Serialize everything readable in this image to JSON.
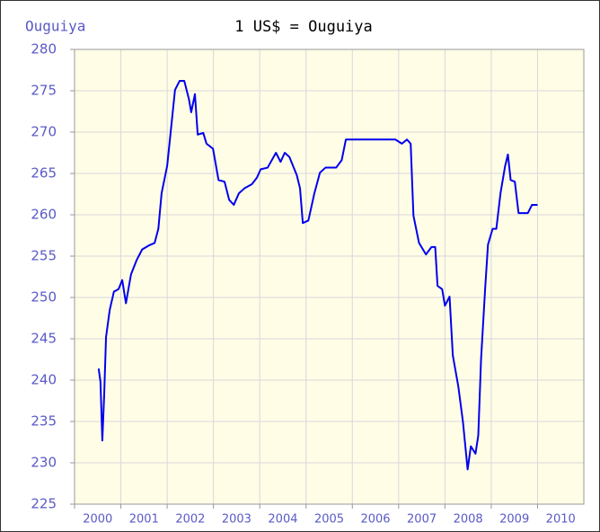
{
  "chart_data": {
    "type": "line",
    "title": "1 US$ = Ouguiya",
    "ylabel": "Ouguiya",
    "x": [
      2000.52,
      2000.56,
      2000.6,
      2000.64,
      2000.68,
      2000.76,
      2000.85,
      2000.95,
      2001.03,
      2001.11,
      2001.22,
      2001.34,
      2001.46,
      2001.61,
      2001.73,
      2001.81,
      2001.88,
      2002.0,
      2002.08,
      2002.17,
      2002.27,
      2002.37,
      2002.47,
      2002.52,
      2002.6,
      2002.66,
      2002.78,
      2002.85,
      2002.99,
      2003.11,
      2003.24,
      2003.34,
      2003.44,
      2003.55,
      2003.67,
      2003.83,
      2003.94,
      2004.02,
      2004.17,
      2004.35,
      2004.45,
      2004.54,
      2004.64,
      2004.8,
      2004.87,
      2004.93,
      2005.05,
      2005.18,
      2005.3,
      2005.42,
      2005.65,
      2005.77,
      2005.86,
      2006.93,
      2007.07,
      2007.18,
      2007.26,
      2007.32,
      2007.44,
      2007.59,
      2007.71,
      2007.79,
      2007.84,
      2007.94,
      2008.0,
      2008.1,
      2008.17,
      2008.29,
      2008.39,
      2008.49,
      2008.56,
      2008.66,
      2008.72,
      2008.78,
      2008.87,
      2008.93,
      2009.03,
      2009.11,
      2009.2,
      2009.3,
      2009.36,
      2009.42,
      2009.51,
      2009.59,
      2009.79,
      2009.88,
      2010.0
    ],
    "series": [
      {
        "name": "Ouguiya",
        "color": "#0000ee",
        "values": [
          241.4,
          239.8,
          232.7,
          238.2,
          245.2,
          248.5,
          250.7,
          251.0,
          252.1,
          249.3,
          252.8,
          254.5,
          255.8,
          256.3,
          256.6,
          258.3,
          262.6,
          265.9,
          270.2,
          275.1,
          276.2,
          276.2,
          274.0,
          272.4,
          274.6,
          269.7,
          269.9,
          268.6,
          268.0,
          264.2,
          264.0,
          261.8,
          261.2,
          262.6,
          263.2,
          263.7,
          264.5,
          265.5,
          265.7,
          267.5,
          266.4,
          267.5,
          267.0,
          264.8,
          263.2,
          259.0,
          259.3,
          262.6,
          265.1,
          265.7,
          265.7,
          266.6,
          269.1,
          269.1,
          268.6,
          269.1,
          268.6,
          259.9,
          256.6,
          255.2,
          256.1,
          256.1,
          251.4,
          251.0,
          249.0,
          250.1,
          243.0,
          239.2,
          234.9,
          229.2,
          232.0,
          231.1,
          233.3,
          242.5,
          251.2,
          256.4,
          258.3,
          258.3,
          262.6,
          265.9,
          267.3,
          264.2,
          264.0,
          260.2,
          260.2,
          261.2,
          261.2
        ]
      }
    ],
    "xlim": [
      2000,
      2011
    ],
    "xticks": [
      2000,
      2001,
      2002,
      2003,
      2004,
      2005,
      2006,
      2007,
      2008,
      2009,
      2010
    ],
    "ylim": [
      225,
      280
    ],
    "yticks": [
      225,
      230,
      235,
      240,
      245,
      250,
      255,
      260,
      265,
      270,
      275,
      280
    ],
    "grid": true
  }
}
